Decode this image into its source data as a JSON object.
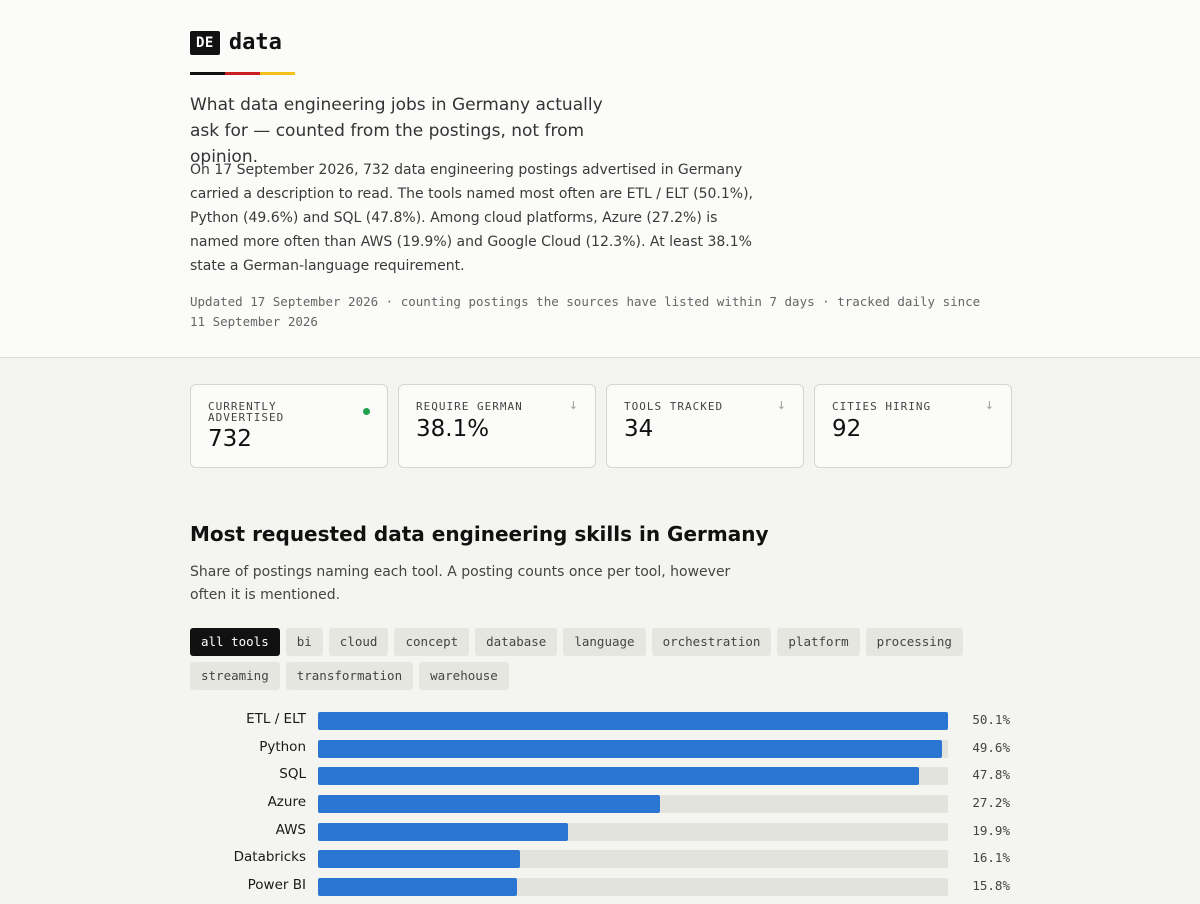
{
  "header": {
    "badge": "DE",
    "brand": "data",
    "flag_colors": [
      "#111111",
      "#cc1f1f",
      "#f2c21b"
    ]
  },
  "hero": {
    "tagline": "What data engineering jobs in Germany actually ask for — counted from the postings, not from opinion.",
    "intro": "On 17 September 2026, 732 data engineering postings advertised in Germany carried a description to read. The tools named most often are ETL / ELT (50.1%), Python (49.6%) and SQL (47.8%). Among cloud platforms, Azure (27.2%) is named more often than AWS (19.9%) and Google Cloud (12.3%). At least 38.1% state a German-language requirement.",
    "updated": "Updated 17 September 2026 · counting postings the sources have listed within 7 days · tracked daily since 11 September 2026"
  },
  "stats": [
    {
      "label": "CURRENTLY ADVERTISED",
      "value": "732",
      "indicator": "live-dot"
    },
    {
      "label": "REQUIRE GERMAN",
      "value": "38.1%",
      "indicator": "sort-arrow"
    },
    {
      "label": "TOOLS TRACKED",
      "value": "34",
      "indicator": "sort-arrow"
    },
    {
      "label": "CITIES HIRING",
      "value": "92",
      "indicator": "sort-arrow"
    }
  ],
  "arrow_glyph": "↓",
  "section": {
    "title": "Most requested data engineering skills in Germany",
    "subtitle": "Share of postings naming each tool. A posting counts once per tool, however often it is mentioned."
  },
  "filters": {
    "active": "all tools",
    "items": [
      "all tools",
      "bi",
      "cloud",
      "concept",
      "database",
      "language",
      "orchestration",
      "platform",
      "processing",
      "streaming",
      "transformation",
      "warehouse"
    ]
  },
  "chart_data": {
    "type": "bar",
    "orientation": "horizontal",
    "categories": [
      "ETL / ELT",
      "Python",
      "SQL",
      "Azure",
      "AWS",
      "Databricks",
      "Power BI"
    ],
    "values": [
      50.1,
      49.6,
      47.8,
      27.2,
      19.9,
      16.1,
      15.8
    ],
    "value_labels": [
      "50.1%",
      "49.6%",
      "47.8%",
      "27.2%",
      "19.9%",
      "16.1%",
      "15.8%"
    ],
    "xlim": [
      0,
      50.1
    ],
    "bar_color": "#2b76d2",
    "track_color": "#e3e3de"
  }
}
